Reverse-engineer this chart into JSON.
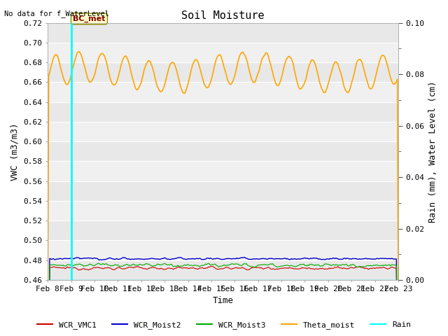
{
  "title": "Soil Moisture",
  "top_left_text": "No data for f_WaterLevel",
  "xlabel": "Time",
  "ylabel_left": "VWC (m3/m3)",
  "ylabel_right": "Rain (mm), Water Level (cm)",
  "ylim_left": [
    0.46,
    0.72
  ],
  "ylim_right": [
    0.0,
    0.1
  ],
  "yticks_left": [
    0.46,
    0.48,
    0.5,
    0.52,
    0.54,
    0.56,
    0.58,
    0.6,
    0.62,
    0.64,
    0.66,
    0.68,
    0.7,
    0.72
  ],
  "yticks_right_major": [
    0.0,
    0.02,
    0.04,
    0.06,
    0.08,
    0.1
  ],
  "yticks_right_minor": [
    0.01,
    0.03,
    0.05,
    0.07,
    0.09
  ],
  "xtick_labels": [
    "Feb 8",
    "Feb 9",
    "Feb 10",
    "Feb 11",
    "Feb 12",
    "Feb 13",
    "Feb 14",
    "Feb 15",
    "Feb 16",
    "Feb 17",
    "Feb 18",
    "Feb 19",
    "Feb 20",
    "Feb 21",
    "Feb 22",
    "Feb 23"
  ],
  "vline_x": 1,
  "vline_label": "BC_met",
  "vline_color": "#00FFFF",
  "bg_color": "#e8e8e8",
  "bg_stripe_light": "#f0f0f0",
  "bg_stripe_dark": "#e0e0e0",
  "colors": {
    "WCR_VMC1": "#cc0000",
    "WCR_Moist2": "#0000cc",
    "WCR_Moist3": "#00aa00",
    "Theta_moist": "#ffa500",
    "Rain": "#00ffff"
  },
  "legend_labels": [
    "WCR_VMC1",
    "WCR_Moist2",
    "WCR_Moist3",
    "Theta_moist",
    "Rain"
  ],
  "title_fontsize": 11,
  "axis_label_fontsize": 9,
  "tick_fontsize": 8,
  "legend_fontsize": 8
}
